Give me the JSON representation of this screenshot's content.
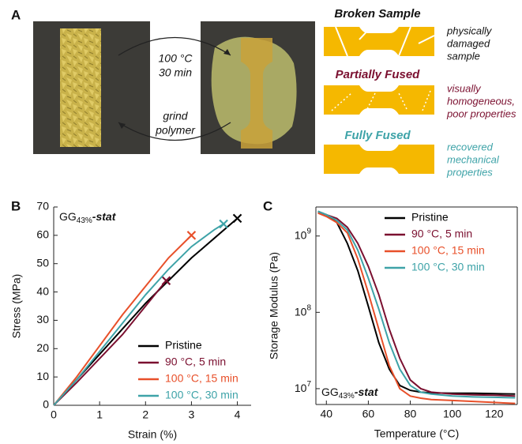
{
  "panel_a": {
    "label": "A",
    "heat_arrow": [
      "100 °C",
      "30 min"
    ],
    "grind_arrow": [
      "grind",
      "polymer"
    ],
    "states": [
      {
        "title": "Broken Sample",
        "description": [
          "physically",
          "damaged",
          "sample"
        ]
      },
      {
        "title": "Partially Fused",
        "description": [
          "visually",
          "homogeneous,",
          "poor properties"
        ]
      },
      {
        "title": "Fully Fused",
        "description": [
          "recovered",
          "mechanical",
          "properties"
        ]
      }
    ]
  },
  "chart_data": [
    {
      "type": "line",
      "label": "B",
      "annotation": {
        "text": "GG",
        "subscript": "43%",
        "suffix": "-stat"
      },
      "x_label": "Strain (%)",
      "y_label": "Stress (MPa)",
      "xlim": [
        0,
        4.3
      ],
      "ylim": [
        0,
        70
      ],
      "xticks": [
        0,
        1,
        2,
        3,
        4
      ],
      "yticks": [
        0,
        10,
        20,
        30,
        40,
        50,
        60,
        70
      ],
      "end_marker": true,
      "series": [
        {
          "name": "Pristine",
          "color": "#000000",
          "x": [
            0,
            0.5,
            1,
            1.5,
            2,
            2.5,
            3,
            3.5,
            4
          ],
          "values": [
            0,
            9,
            18,
            27,
            36,
            44,
            52,
            59,
            66
          ]
        },
        {
          "name": "90 °C, 5 min",
          "color": "#7b1030",
          "x": [
            0,
            0.5,
            1,
            1.5,
            2,
            2.45
          ],
          "values": [
            0,
            8,
            16.5,
            25,
            35,
            44
          ]
        },
        {
          "name": "100 °C, 15 min",
          "color": "#e8502a",
          "x": [
            0,
            0.5,
            1,
            1.5,
            2,
            2.5,
            3
          ],
          "values": [
            0,
            10,
            21,
            32,
            42,
            52,
            60
          ]
        },
        {
          "name": "100 °C, 30 min",
          "color": "#3ea3a8",
          "x": [
            0,
            0.5,
            1,
            1.5,
            2,
            2.5,
            3,
            3.5,
            3.7
          ],
          "values": [
            0,
            9,
            19,
            29,
            39,
            48,
            56,
            62,
            64
          ]
        }
      ]
    },
    {
      "type": "line",
      "label": "C",
      "annotation": {
        "text": "GG",
        "subscript": "43%",
        "suffix": "-stat"
      },
      "x_label": "Temperature (°C)",
      "y_label": "Storage Modulus (Pa)",
      "log_y": true,
      "xlim": [
        35,
        131
      ],
      "ylim": [
        6200000,
        2400000000
      ],
      "xticks": [
        40,
        60,
        80,
        100,
        120
      ],
      "yticks": [
        {
          "value": 10000000,
          "label": "10",
          "exponent": "7"
        },
        {
          "value": 100000000,
          "label": "10",
          "exponent": "8"
        },
        {
          "value": 1000000000,
          "label": "10",
          "exponent": "9"
        }
      ],
      "series": [
        {
          "name": "Pristine",
          "color": "#000000",
          "x": [
            36,
            40,
            45,
            50,
            55,
            60,
            65,
            70,
            75,
            80,
            85,
            90,
            100,
            110,
            120,
            130
          ],
          "values": [
            2100000000,
            1900000000,
            1500000000,
            800000000,
            350000000,
            120000000,
            40000000,
            18000000,
            11000000,
            9500000,
            9000000,
            8800000,
            8700000,
            8700000,
            8600000,
            8500000
          ]
        },
        {
          "name": "90 °C, 5 min",
          "color": "#7b1030",
          "x": [
            36,
            40,
            45,
            50,
            55,
            60,
            65,
            70,
            75,
            80,
            85,
            90,
            100,
            110,
            120,
            130
          ],
          "values": [
            2000000000,
            1900000000,
            1700000000,
            1300000000,
            800000000,
            400000000,
            170000000,
            60000000,
            25000000,
            13000000,
            10000000,
            9000000,
            8500000,
            8300000,
            8200000,
            8000000
          ]
        },
        {
          "name": "100 °C, 15 min",
          "color": "#e8502a",
          "x": [
            36,
            40,
            45,
            50,
            55,
            60,
            65,
            70,
            75,
            80,
            85,
            90,
            100,
            110,
            120,
            130
          ],
          "values": [
            2000000000,
            1800000000,
            1500000000,
            1100000000,
            500000000,
            180000000,
            60000000,
            20000000,
            10000000,
            8000000,
            7500000,
            7200000,
            7000000,
            6800000,
            6600000,
            6400000
          ]
        },
        {
          "name": "100 °C, 30 min",
          "color": "#3ea3a8",
          "x": [
            36,
            40,
            45,
            50,
            55,
            60,
            65,
            70,
            75,
            80,
            85,
            90,
            100,
            110,
            120,
            130
          ],
          "values": [
            2100000000,
            1900000000,
            1600000000,
            1200000000,
            650000000,
            280000000,
            110000000,
            40000000,
            18000000,
            11000000,
            9000000,
            8500000,
            8000000,
            7800000,
            7700000,
            7600000
          ]
        }
      ]
    }
  ]
}
